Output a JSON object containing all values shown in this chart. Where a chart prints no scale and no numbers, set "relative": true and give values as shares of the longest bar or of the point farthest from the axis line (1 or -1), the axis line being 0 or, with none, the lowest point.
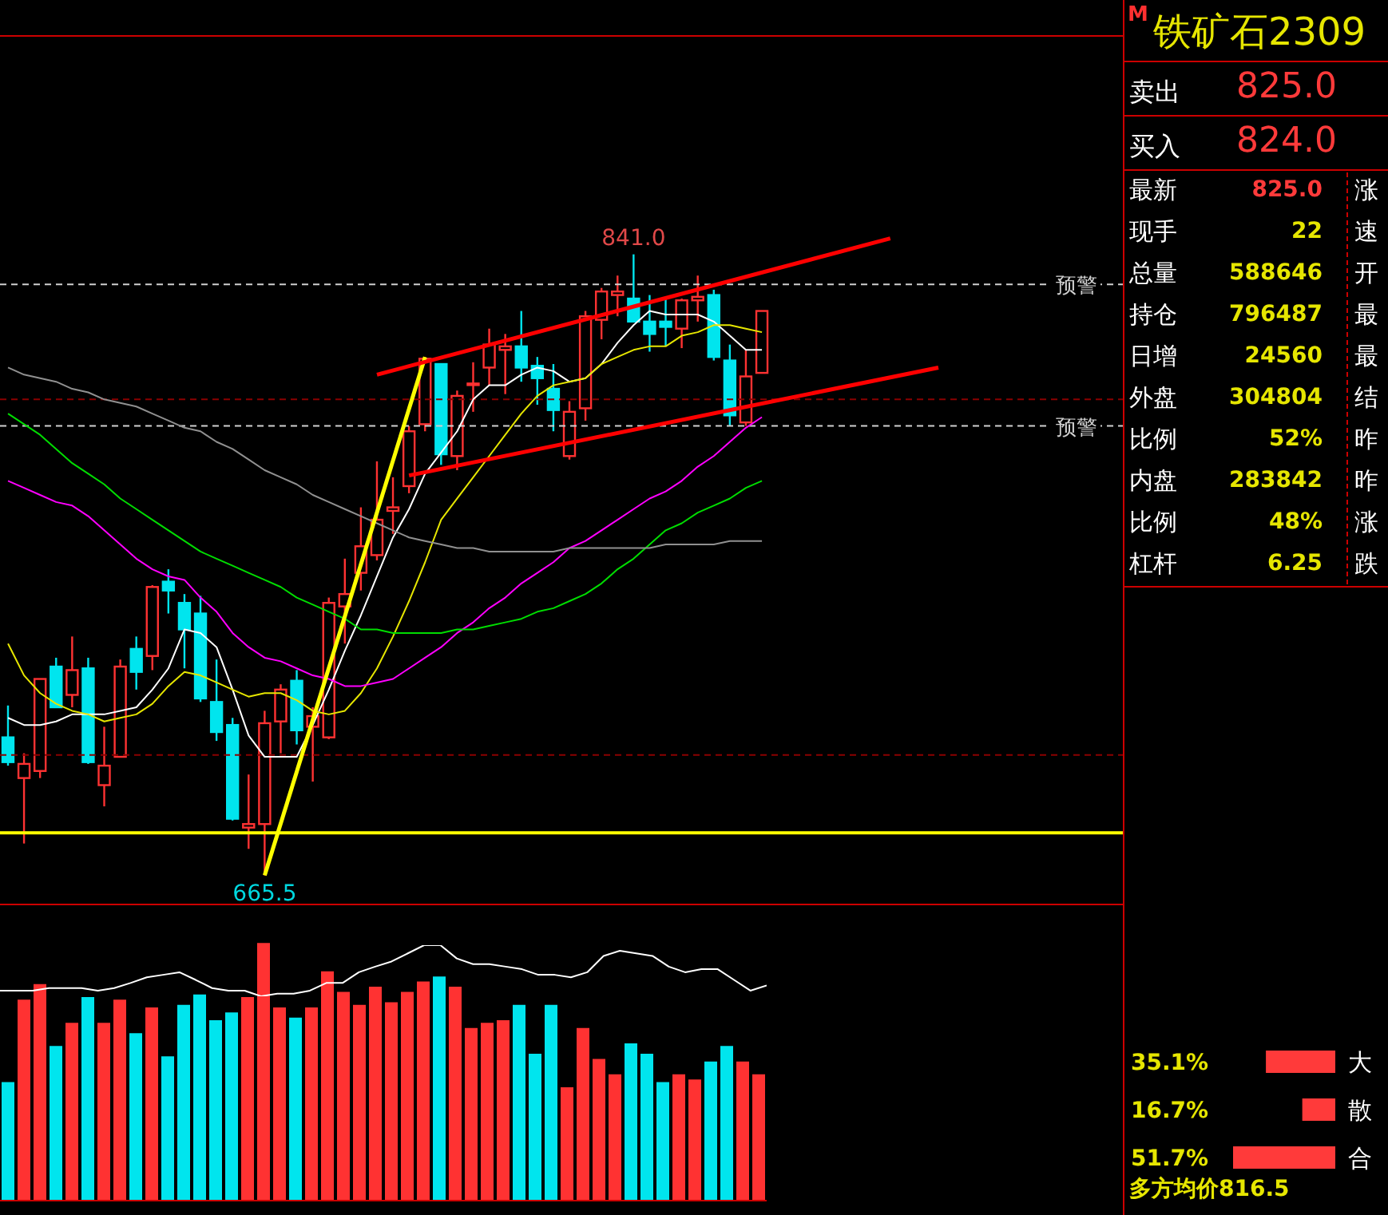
{
  "chart_data": [
    {
      "type": "candlestick",
      "categories": [
        null,
        null,
        null,
        null,
        null,
        null,
        null,
        null,
        null,
        null,
        null,
        null,
        null,
        null,
        null,
        null,
        null,
        null,
        null,
        null,
        null,
        null,
        null,
        null,
        null,
        null,
        null,
        null,
        null,
        null,
        null,
        null,
        null,
        null,
        null,
        null,
        null,
        null,
        null,
        null,
        null,
        null,
        null,
        null,
        null,
        null,
        null,
        null,
        null,
        null,
        null,
        null,
        null,
        null,
        null,
        null,
        null,
        null,
        null,
        null,
        null,
        null,
        null,
        null,
        null,
        null,
        null,
        null,
        null,
        null
      ],
      "ohlc": [
        [
          704.5,
          713.5,
          696.5,
          697.5
        ],
        [
          693,
          700,
          674.5,
          697
        ],
        [
          695,
          721,
          693,
          721
        ],
        [
          724.5,
          727,
          713,
          713
        ],
        [
          716.5,
          733,
          713,
          723.5
        ],
        [
          724,
          727,
          697,
          697.5
        ],
        [
          691,
          707.5,
          685,
          696.5
        ],
        [
          699,
          726.5,
          699,
          724.5
        ],
        [
          729.5,
          733,
          718,
          723
        ],
        [
          727.5,
          747.5,
          723.5,
          747
        ],
        [
          748.5,
          752,
          739.5,
          746
        ],
        [
          742.5,
          745,
          724,
          735
        ],
        [
          739.5,
          744.5,
          714.5,
          715.5
        ],
        [
          714.5,
          726.5,
          703.5,
          706
        ],
        [
          708,
          710,
          681,
          681.5
        ],
        [
          679,
          694,
          673,
          680
        ],
        [
          680,
          712,
          665.5,
          708.5
        ],
        [
          709,
          719.5,
          700,
          718
        ],
        [
          720.5,
          723.5,
          702.5,
          706.5
        ],
        [
          707.5,
          713,
          692,
          710.5
        ],
        [
          704.5,
          744,
          704,
          742.5
        ],
        [
          741.5,
          755,
          731,
          745
        ],
        [
          751,
          769.5,
          746,
          758.5
        ],
        [
          756,
          782.5,
          754.5,
          766
        ],
        [
          768.5,
          778,
          762,
          769.5
        ],
        [
          775.5,
          792.5,
          773.5,
          791
        ],
        [
          793,
          812,
          791,
          811.5
        ],
        [
          810,
          810,
          781.5,
          784.5
        ],
        [
          784,
          802.5,
          780,
          801
        ],
        [
          804.5,
          810.5,
          796.5,
          804.5
        ],
        [
          809,
          820,
          804,
          815.5
        ],
        [
          814,
          818.5,
          801.5,
          815
        ],
        [
          815,
          825,
          805,
          809
        ],
        [
          809.5,
          812,
          798.5,
          806
        ],
        [
          803,
          810,
          791,
          797
        ],
        [
          784,
          799.5,
          783,
          796.5
        ],
        [
          797.5,
          825,
          794,
          823.5
        ],
        [
          822.5,
          831.5,
          817,
          830.5
        ],
        [
          829.5,
          835,
          823.5,
          830.5
        ],
        [
          828.5,
          841,
          822,
          822
        ],
        [
          822,
          829.5,
          813.5,
          818.5
        ],
        [
          822,
          828.5,
          815,
          820.5
        ],
        [
          820,
          828.5,
          814.5,
          828
        ],
        [
          828,
          835,
          822,
          829
        ],
        [
          829.5,
          831,
          811,
          812
        ],
        [
          811,
          815.5,
          792.5,
          795.5
        ],
        [
          793.5,
          814,
          792.5,
          806.5
        ],
        [
          807.5,
          825,
          807.5,
          825
        ],
        null,
        null,
        null,
        null,
        null,
        null,
        null,
        null,
        null,
        null,
        null,
        null,
        null,
        null,
        null,
        null,
        null,
        null,
        null,
        null,
        null,
        null
      ],
      "colors": [
        "#00e5ee",
        "#ff3232",
        "#ff3232",
        "#00e5ee",
        "#ff3232",
        "#00e5ee",
        "#ff3232",
        "#ff3232",
        "#00e5ee",
        "#ff3232",
        "#00e5ee",
        "#00e5ee",
        "#00e5ee",
        "#00e5ee",
        "#00e5ee",
        "#ff3232",
        "#ff3232",
        "#ff3232",
        "#00e5ee",
        "#ff3232",
        "#ff3232",
        "#ff3232",
        "#ff3232",
        "#ff3232",
        "#ff3232",
        "#ff3232",
        "#ff3232",
        "#00e5ee",
        "#ff3232",
        "#ff3232",
        "#ff3232",
        "#ff3232",
        "#00e5ee",
        "#00e5ee",
        "#00e5ee",
        "#ff3232",
        "#ff3232",
        "#ff3232",
        "#ff3232",
        "#00e5ee",
        "#00e5ee",
        "#00e5ee",
        "#ff3232",
        "#ff3232",
        "#00e5ee",
        "#00e5ee",
        "#ff3232",
        "#ff3232",
        null,
        null,
        null,
        null,
        null,
        null,
        null,
        null,
        null,
        null,
        null,
        null,
        null,
        null,
        null,
        null,
        null,
        null,
        null,
        null,
        null,
        null
      ],
      "ylim": [
        657.5,
        902.5
      ],
      "series": [
        {
          "type": "line",
          "color": "#ffffff",
          "values": [
            710,
            708,
            708,
            709,
            711,
            711,
            711,
            712,
            713,
            718,
            724,
            735,
            734,
            730,
            718,
            705,
            699,
            699,
            699,
            708,
            718,
            729,
            739,
            750,
            761,
            769,
            779,
            785,
            791,
            800,
            804,
            804,
            807,
            809,
            808,
            805,
            806,
            810,
            816,
            821,
            825,
            824,
            824,
            824,
            822,
            818,
            814,
            814,
            null,
            null,
            null,
            null,
            null,
            null,
            null,
            null,
            null,
            null,
            null,
            null,
            null,
            null,
            null,
            null,
            null,
            null,
            null,
            null,
            null,
            null
          ]
        },
        {
          "type": "line",
          "color": "#e6e600",
          "values": [
            731,
            722,
            717,
            714,
            712,
            711,
            709,
            710,
            711,
            714,
            719,
            723,
            722,
            720,
            718,
            716,
            717,
            717,
            715,
            712,
            711,
            712,
            717,
            724,
            733,
            743,
            754,
            766,
            772,
            778,
            784,
            790,
            796,
            801,
            804,
            805,
            806,
            810,
            812,
            814,
            815,
            815,
            818,
            819,
            821,
            821,
            820,
            819,
            null,
            null,
            null,
            null,
            null,
            null,
            null,
            null,
            null,
            null,
            null,
            null,
            null,
            null,
            null,
            null,
            null,
            null,
            null,
            null,
            null,
            null
          ]
        },
        {
          "type": "line",
          "color": "#ff00ff",
          "values": [
            777,
            775,
            773,
            771,
            770,
            767,
            763,
            759,
            755,
            752,
            750,
            749,
            744,
            740,
            734,
            730,
            727,
            726,
            724,
            722,
            721,
            719,
            719,
            720,
            721,
            724,
            727,
            730,
            734,
            737,
            741,
            744,
            748,
            751,
            754,
            758,
            760,
            763,
            766,
            769,
            772,
            774,
            777,
            781,
            784,
            788,
            792,
            795,
            null,
            null,
            null,
            null,
            null,
            null,
            null,
            null,
            null,
            null,
            null,
            null,
            null,
            null,
            null,
            null,
            null,
            null,
            null,
            null,
            null,
            null
          ]
        },
        {
          "type": "line",
          "color": "#00dd00",
          "values": [
            796,
            793,
            790,
            786,
            782,
            779,
            776,
            772,
            769,
            766,
            763,
            760,
            757,
            755,
            753,
            751,
            749,
            747,
            744,
            742,
            740,
            738,
            735,
            735,
            734,
            734,
            734,
            734,
            735,
            735,
            736,
            737,
            738,
            740,
            741,
            743,
            745,
            748,
            752,
            755,
            759,
            763,
            765,
            768,
            770,
            772,
            775,
            777,
            null,
            null,
            null,
            null,
            null,
            null,
            null,
            null,
            null,
            null,
            null,
            null,
            null,
            null,
            null,
            null,
            null,
            null,
            null,
            null,
            null,
            null
          ]
        },
        {
          "type": "line",
          "color": "#909090",
          "values": [
            809,
            807,
            806,
            805,
            803,
            802,
            800,
            799,
            798,
            796,
            794,
            792,
            791,
            788,
            786,
            783,
            780,
            778,
            776,
            773,
            771,
            769,
            767,
            765,
            763,
            761,
            760,
            759,
            758,
            758,
            757,
            757,
            757,
            757,
            757,
            758,
            758,
            758,
            758,
            758,
            758,
            759,
            759,
            759,
            759,
            760,
            760,
            760,
            null,
            null,
            null,
            null,
            null,
            null,
            null,
            null,
            null,
            null,
            null,
            null,
            null,
            null,
            null,
            null,
            null,
            null,
            null,
            null,
            null,
            null
          ]
        },
        {
          "type": "line",
          "color": "#ffff00",
          "values": [
            null,
            null,
            null,
            null,
            null,
            null,
            null,
            null,
            null,
            null,
            null,
            null,
            null,
            null,
            null,
            null,
            665.5,
            null,
            null,
            null,
            null,
            null,
            null,
            null,
            null,
            null,
            812,
            null,
            null,
            null,
            null,
            null,
            null,
            null,
            null,
            null,
            null,
            null,
            null,
            null,
            null,
            null,
            null,
            null,
            null,
            null,
            null,
            null,
            null,
            null,
            null,
            null,
            null,
            null,
            null,
            null,
            null,
            null,
            null,
            null,
            null,
            null,
            null,
            null,
            null,
            null,
            null,
            null,
            null,
            null
          ]
        },
        {
          "type": "line",
          "color": "#ff0000",
          "values": [
            null,
            null,
            null,
            null,
            null,
            null,
            null,
            null,
            null,
            null,
            null,
            null,
            null,
            null,
            null,
            null,
            null,
            null,
            null,
            null,
            null,
            null,
            null,
            807,
            null,
            null,
            null,
            null,
            null,
            null,
            null,
            null,
            null,
            null,
            null,
            null,
            null,
            null,
            null,
            null,
            null,
            null,
            null,
            null,
            null,
            null,
            null,
            null,
            null,
            null,
            null,
            null,
            null,
            null,
            null,
            845.5,
            null,
            null,
            null,
            null,
            null,
            null,
            null,
            null,
            null,
            null,
            null,
            null,
            null,
            null
          ]
        },
        {
          "type": "line",
          "color": "#ff0000",
          "values": [
            null,
            null,
            null,
            null,
            null,
            null,
            null,
            null,
            null,
            null,
            null,
            null,
            null,
            null,
            null,
            null,
            null,
            null,
            null,
            null,
            null,
            null,
            null,
            null,
            null,
            778.5,
            null,
            null,
            null,
            null,
            null,
            null,
            null,
            null,
            null,
            null,
            null,
            null,
            null,
            null,
            null,
            null,
            null,
            null,
            null,
            null,
            null,
            null,
            null,
            null,
            null,
            null,
            null,
            null,
            null,
            null,
            null,
            null,
            809,
            null,
            null,
            null,
            null,
            null,
            null,
            null,
            null,
            null,
            null,
            null
          ]
        }
      ],
      "ref_lines": [
        {
          "axis": "y",
          "value": 832.5,
          "label": "预警",
          "color": "#d0d0d0",
          "line_style": "dashed"
        },
        {
          "axis": "y",
          "value": 792.5,
          "label": "预警",
          "color": "#d0d0d0",
          "line_style": "dashed"
        },
        {
          "axis": "y",
          "value": 800,
          "color": "#8b0000",
          "line_style": "dashed"
        },
        {
          "axis": "y",
          "value": 699.5,
          "color": "#8b0000",
          "line_style": "dashed"
        },
        {
          "axis": "y",
          "value": 677.5,
          "color": "#ffff00",
          "line_style": "solid"
        }
      ],
      "annotations": [
        {
          "text": "841.0",
          "y": 841
        },
        {
          "text": "665.5",
          "y": 665.5
        }
      ]
    },
    {
      "type": "bar",
      "relative": true,
      "categories": [
        null,
        null,
        null,
        null,
        null,
        null,
        null,
        null,
        null,
        null,
        null,
        null,
        null,
        null,
        null,
        null,
        null,
        null,
        null,
        null,
        null,
        null,
        null,
        null,
        null,
        null,
        null,
        null,
        null,
        null,
        null,
        null,
        null,
        null,
        null,
        null,
        null,
        null,
        null,
        null,
        null,
        null,
        null,
        null,
        null,
        null,
        null,
        null
      ],
      "series": [
        {
          "type": "bar",
          "colors": [
            "#00e5ee",
            "#ff3232",
            "#ff3232",
            "#00e5ee",
            "#ff3232",
            "#00e5ee",
            "#ff3232",
            "#ff3232",
            "#00e5ee",
            "#ff3232",
            "#00e5ee",
            "#00e5ee",
            "#00e5ee",
            "#00e5ee",
            "#00e5ee",
            "#ff3232",
            "#ff3232",
            "#ff3232",
            "#00e5ee",
            "#ff3232",
            "#ff3232",
            "#ff3232",
            "#ff3232",
            "#ff3232",
            "#ff3232",
            "#ff3232",
            "#ff3232",
            "#00e5ee",
            "#ff3232",
            "#ff3232",
            "#ff3232",
            "#ff3232",
            "#00e5ee",
            "#00e5ee",
            "#00e5ee",
            "#ff3232",
            "#ff3232",
            "#ff3232",
            "#ff3232",
            "#00e5ee",
            "#00e5ee",
            "#00e5ee",
            "#ff3232",
            "#ff3232",
            "#00e5ee",
            "#00e5ee",
            "#ff3232",
            "#ff3232"
          ],
          "values": [
            0.46,
            0.78,
            0.84,
            0.6,
            0.69,
            0.79,
            0.69,
            0.78,
            0.65,
            0.75,
            0.56,
            0.76,
            0.8,
            0.7,
            0.73,
            0.79,
            1,
            0.75,
            0.71,
            0.75,
            0.89,
            0.81,
            0.76,
            0.83,
            0.77,
            0.81,
            0.85,
            0.87,
            0.83,
            0.67,
            0.69,
            0.7,
            0.76,
            0.57,
            0.76,
            0.44,
            0.67,
            0.55,
            0.49,
            0.61,
            0.57,
            0.46,
            0.49,
            0.47,
            0.54,
            0.6,
            0.54,
            0.49
          ]
        }
      ]
    },
    {
      "type": "line",
      "relative": true,
      "categories": [
        null,
        null,
        null,
        null,
        null,
        null,
        null,
        null,
        null,
        null,
        null,
        null,
        null,
        null,
        null,
        null,
        null,
        null,
        null,
        null,
        null,
        null,
        null,
        null,
        null,
        null,
        null,
        null,
        null,
        null,
        null,
        null,
        null,
        null,
        null,
        null,
        null,
        null,
        null,
        null,
        null,
        null,
        null,
        null,
        null,
        null,
        null,
        null
      ],
      "series": [
        {
          "type": "line",
          "color": "#ffffff",
          "values": [
            0.11,
            0.11,
            0.11,
            0.16,
            0.16,
            0.16,
            0.11,
            0.16,
            0.26,
            0.37,
            0.42,
            0.47,
            0.32,
            0.16,
            0.11,
            0.11,
            0,
            0.05,
            0.05,
            0.11,
            0.26,
            0.26,
            0.47,
            0.58,
            0.68,
            0.84,
            1,
            1,
            0.74,
            0.63,
            0.63,
            0.58,
            0.53,
            0.42,
            0.42,
            0.37,
            0.47,
            0.79,
            0.89,
            0.84,
            0.79,
            0.58,
            0.47,
            0.53,
            0.53,
            0.32,
            0.11,
            0.21
          ]
        }
      ]
    },
    {
      "type": "other",
      "title": "铁矿石2309",
      "subtitle": "M",
      "annotations": [
        "卖出",
        "825.0",
        "买入",
        "824.0",
        "最新",
        "825.0",
        "现手",
        "22",
        "总量",
        "588646",
        "持仓",
        "796487",
        "日增",
        "24560",
        "外盘",
        "304804",
        "比例",
        "52%",
        "内盘",
        "283842",
        "比例",
        "48%",
        "杠杆",
        "6.25",
        "涨",
        "速",
        "开",
        "最",
        "最",
        "结",
        "昨",
        "昨",
        "涨",
        "跌",
        "多方均价816.5"
      ]
    },
    {
      "type": "bar",
      "orientation": "horizontal",
      "categories": [
        "大",
        "散",
        "合"
      ],
      "values": [
        35.1,
        16.7,
        51.7
      ],
      "color": "#ff3a3a",
      "value_labels": [
        "35.1%",
        "16.7%",
        "51.7%"
      ]
    }
  ]
}
